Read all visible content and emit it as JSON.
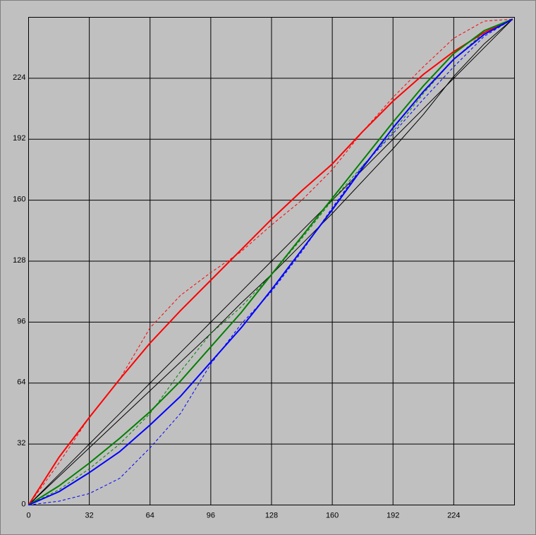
{
  "chart_data": {
    "type": "line",
    "x": [
      0,
      16,
      32,
      48,
      64,
      80,
      96,
      112,
      128,
      144,
      160,
      176,
      192,
      208,
      224,
      240,
      255
    ],
    "series": [
      {
        "color": "#000000",
        "style": "solid",
        "width": 1,
        "values": [
          0,
          16,
          32,
          48,
          64,
          80,
          96,
          112,
          128,
          144,
          160,
          176,
          192,
          208,
          224,
          240,
          255
        ]
      },
      {
        "color": "#000000",
        "style": "solid",
        "width": 1,
        "values": [
          0,
          15,
          30,
          45,
          60,
          75,
          90,
          106,
          121,
          137,
          153,
          170,
          187,
          205,
          225,
          242,
          255
        ]
      },
      {
        "color": "#ff0000",
        "style": "dashed",
        "width": 1,
        "values": [
          0,
          22,
          46,
          66,
          93,
          110,
          122,
          133,
          147,
          160,
          176,
          196,
          214,
          230,
          245,
          254,
          255
        ]
      },
      {
        "color": "#008000",
        "style": "dashed",
        "width": 1,
        "values": [
          0,
          8,
          19,
          32,
          48,
          70,
          90,
          104,
          121,
          140,
          160,
          178,
          196,
          216,
          234,
          248,
          255
        ]
      },
      {
        "color": "#0000ff",
        "style": "dashed",
        "width": 1,
        "values": [
          0,
          2,
          6,
          14,
          30,
          48,
          74,
          95,
          112,
          133,
          156,
          178,
          195,
          213,
          230,
          246,
          255
        ]
      },
      {
        "color": "#ff0000",
        "style": "solid",
        "width": 2,
        "values": [
          0,
          25,
          46,
          66,
          85,
          102,
          118,
          134,
          150,
          165,
          179,
          196,
          212,
          226,
          238,
          248,
          255
        ]
      },
      {
        "color": "#008000",
        "style": "solid",
        "width": 2,
        "values": [
          0,
          10,
          22,
          35,
          49,
          65,
          83,
          101,
          121,
          141,
          161,
          181,
          201,
          220,
          237,
          249,
          255
        ]
      },
      {
        "color": "#0000ff",
        "style": "solid",
        "width": 2,
        "values": [
          0,
          7,
          17,
          28,
          42,
          57,
          75,
          93,
          113,
          134,
          155,
          177,
          198,
          217,
          234,
          247,
          255
        ]
      }
    ],
    "xlim": [
      0,
      256
    ],
    "ylim": [
      0,
      256
    ],
    "xticks": [
      0,
      32,
      64,
      96,
      128,
      160,
      192,
      224
    ],
    "yticks": [
      0,
      32,
      64,
      96,
      128,
      160,
      192,
      224
    ],
    "grid": true
  }
}
